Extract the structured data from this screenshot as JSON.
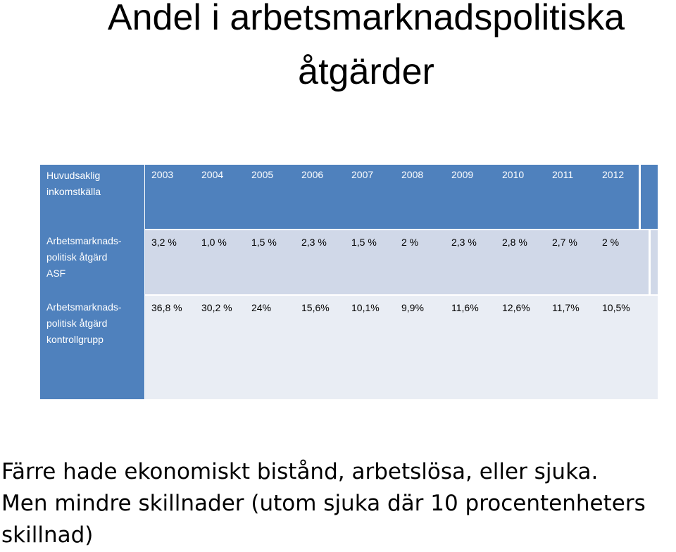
{
  "title": {
    "line1": "Andel i arbetsmarknadspolitiska",
    "line2": "åtgärder"
  },
  "table": {
    "header_label_line1": "Huvudsaklig",
    "header_label_line2": "inkomstkälla",
    "years": [
      "2003",
      "2004",
      "2005",
      "2006",
      "2007",
      "2008",
      "2009",
      "2010",
      "2011",
      "2012"
    ],
    "rows": [
      {
        "label_line1": "Arbetsmarknads-",
        "label_line2": "politisk åtgärd",
        "label_line3": "ASF",
        "values": [
          "3,2 %",
          "1,0 %",
          "1,5 %",
          "2,3 %",
          "1,5 %",
          "2 %",
          "2,3 %",
          "2,8 %",
          "2,7 %",
          "2 %"
        ]
      },
      {
        "label_line1": "Arbetsmarknads-",
        "label_line2": "politisk åtgärd",
        "label_line3": "kontrollgrupp",
        "values": [
          "36,8 %",
          "30,2 %",
          "24%",
          "15,6%",
          "10,1%",
          "9,9%",
          "11,6%",
          "12,6%",
          "11,7%",
          "10,5%"
        ]
      }
    ]
  },
  "footer": {
    "line1": "Färre hade ekonomiskt bistånd,  arbetslösa, eller  sjuka.",
    "line2": " Men mindre skillnader  (utom sjuka där 10 procentenheters",
    "line3": "skillnad)"
  },
  "colors": {
    "header_blue": "#4f81bd",
    "row_light": "#d0d8e8",
    "row_lighter": "#e9edf4"
  }
}
